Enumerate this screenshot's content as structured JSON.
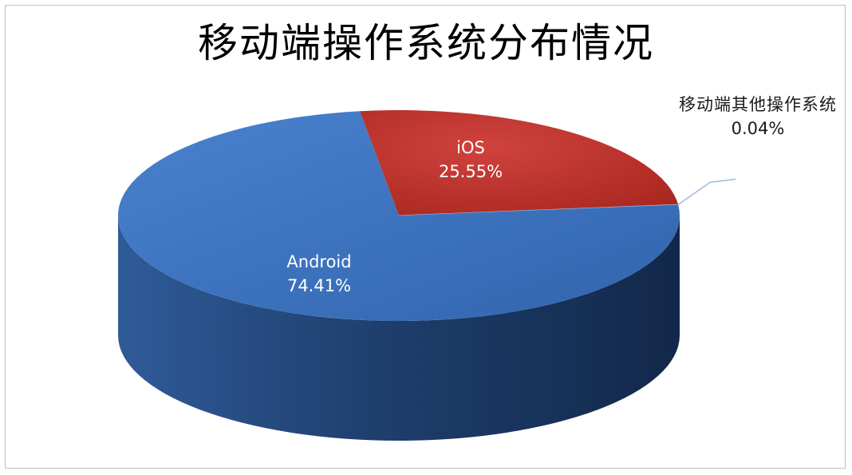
{
  "chart_data": {
    "type": "pie",
    "title": "移动端操作系统分布情况",
    "categories": [
      "iOS",
      "移动端其他操作系统",
      "Android"
    ],
    "values": [
      25.55,
      0.04,
      74.41
    ],
    "value_labels": [
      "25.55%",
      "0.04%",
      "74.41%"
    ],
    "colors": [
      "#c0322f",
      "#9db8de",
      "#3b72c0"
    ],
    "unit": "%",
    "three_d": true,
    "legend": "none",
    "data_labels": "on slices; other category outside with leader line"
  }
}
